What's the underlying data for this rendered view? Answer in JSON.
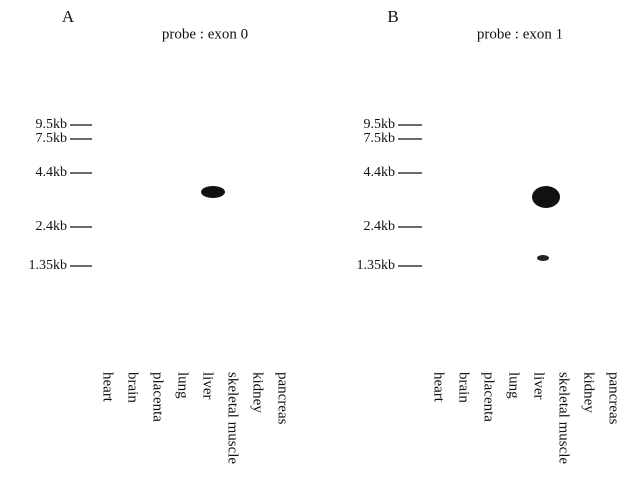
{
  "panels": [
    {
      "label": "A",
      "title": "probe : exon 0",
      "markers": [
        "9.5kb",
        "7.5kb",
        "4.4kb",
        "2.4kb",
        "1.35kb"
      ],
      "lanes": [
        "heart",
        "brain",
        "placenta",
        "lung",
        "liver",
        "skeletal muscle",
        "kidney",
        "pancreas"
      ]
    },
    {
      "label": "B",
      "title": "probe : exon 1",
      "markers": [
        "9.5kb",
        "7.5kb",
        "4.4kb",
        "2.4kb",
        "1.35kb"
      ],
      "lanes": [
        "heart",
        "brain",
        "placenta",
        "lung",
        "liver",
        "skeletal muscle",
        "kidney",
        "pancreas"
      ]
    }
  ]
}
